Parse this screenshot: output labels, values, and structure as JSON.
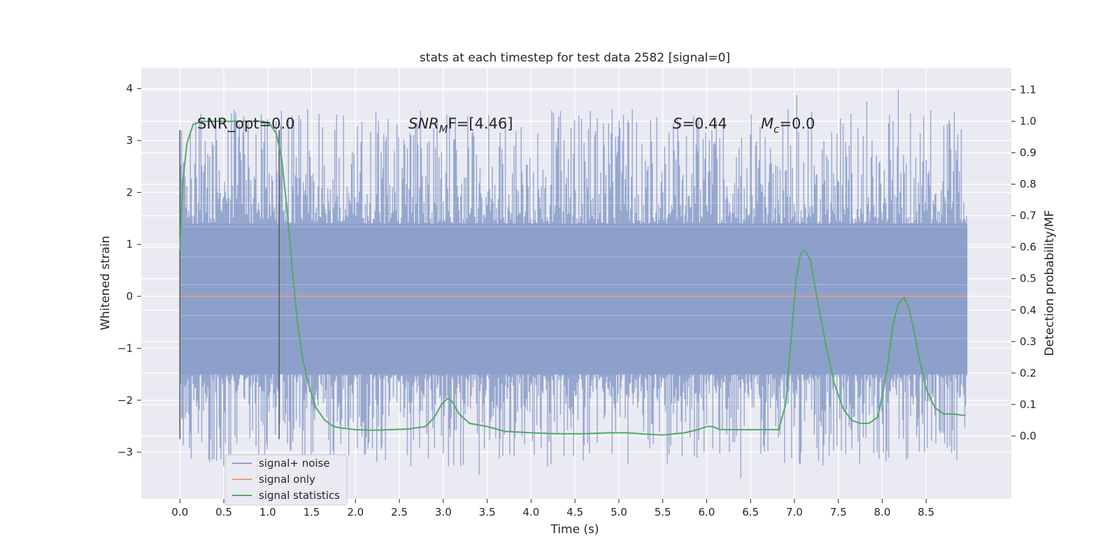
{
  "chart_data": {
    "type": "line",
    "title": "stats at each timestep for test data 2582 [signal=0]",
    "xlabel": "Time (s)",
    "ylabel": "Whitened strain",
    "ylabel_right": "Detection probability/MF",
    "xlim": [
      -0.44,
      9.47
    ],
    "ylim": [
      -3.9,
      4.4
    ],
    "ylim_right": [
      -0.2,
      1.17
    ],
    "x_ticks": [
      "0.0",
      "0.5",
      "1.0",
      "1.5",
      "2.0",
      "2.5",
      "3.0",
      "3.5",
      "4.0",
      "4.5",
      "5.0",
      "5.5",
      "6.0",
      "6.5",
      "7.0",
      "7.5",
      "8.0",
      "8.5"
    ],
    "y_ticks": [
      "−3",
      "−2",
      "−1",
      "0",
      "1",
      "2",
      "3",
      "4"
    ],
    "y_ticks_right": [
      "0.0",
      "0.1",
      "0.2",
      "0.3",
      "0.4",
      "0.5",
      "0.6",
      "0.7",
      "0.8",
      "0.9",
      "1.0",
      "1.1"
    ],
    "grid": true,
    "legend_placement": "lower-left",
    "colors": {
      "background": "#eaeaf2",
      "grid": "#ffffff",
      "noise": "#8da0cb",
      "signal_only": "#e8a07e",
      "statistics": "#55a868",
      "vline": "#555555"
    },
    "annotations": {
      "snr_opt": "SNR_opt=0.0",
      "snr_mf_label": "SNR",
      "snr_mf_sub": "M",
      "snr_mf_rest": "F=[4.46]",
      "s_label": "S",
      "s_rest": "=0.44",
      "mc_label": "M",
      "mc_sub": "c",
      "mc_rest": "=0.0"
    },
    "vertical_lines_x": [
      0.0,
      1.13
    ],
    "series": [
      {
        "name": "signal+ noise",
        "kind": "noise",
        "x_range": [
          0.0,
          8.97
        ],
        "core_band": [
          -1.5,
          1.4
        ],
        "extremes": [
          -3.6,
          4.0
        ]
      },
      {
        "name": "signal only",
        "kind": "flat",
        "x": [
          0.0,
          8.97
        ],
        "y": [
          0.0,
          0.0
        ]
      },
      {
        "name": "signal statistics",
        "kind": "line",
        "axis": "right",
        "x": [
          0.0,
          0.03,
          0.08,
          0.15,
          0.25,
          0.4,
          0.6,
          0.8,
          0.95,
          1.03,
          1.1,
          1.16,
          1.22,
          1.28,
          1.34,
          1.4,
          1.48,
          1.55,
          1.65,
          1.75,
          1.85,
          2.0,
          2.2,
          2.4,
          2.6,
          2.8,
          2.9,
          2.98,
          3.05,
          3.1,
          3.18,
          3.3,
          3.5,
          3.7,
          4.0,
          4.3,
          4.6,
          4.9,
          5.1,
          5.3,
          5.5,
          5.75,
          5.9,
          6.0,
          6.07,
          6.15,
          6.3,
          6.5,
          6.7,
          6.82,
          6.9,
          6.96,
          7.02,
          7.07,
          7.12,
          7.18,
          7.25,
          7.35,
          7.45,
          7.55,
          7.65,
          7.75,
          7.85,
          7.95,
          8.05,
          8.12,
          8.18,
          8.25,
          8.3,
          8.35,
          8.42,
          8.5,
          8.6,
          8.7,
          8.8,
          8.95
        ],
        "y": [
          0.59,
          0.8,
          0.93,
          0.99,
          1.0,
          1.0,
          1.0,
          1.0,
          1.0,
          0.99,
          0.96,
          0.88,
          0.72,
          0.53,
          0.36,
          0.24,
          0.15,
          0.09,
          0.05,
          0.03,
          0.025,
          0.02,
          0.018,
          0.02,
          0.022,
          0.03,
          0.06,
          0.1,
          0.12,
          0.11,
          0.07,
          0.04,
          0.03,
          0.015,
          0.01,
          0.007,
          0.007,
          0.01,
          0.01,
          0.006,
          0.003,
          0.01,
          0.02,
          0.03,
          0.03,
          0.02,
          0.02,
          0.02,
          0.02,
          0.02,
          0.1,
          0.3,
          0.5,
          0.58,
          0.59,
          0.56,
          0.45,
          0.3,
          0.17,
          0.09,
          0.05,
          0.04,
          0.04,
          0.06,
          0.2,
          0.35,
          0.42,
          0.44,
          0.41,
          0.35,
          0.25,
          0.15,
          0.09,
          0.07,
          0.07,
          0.065
        ]
      }
    ]
  }
}
